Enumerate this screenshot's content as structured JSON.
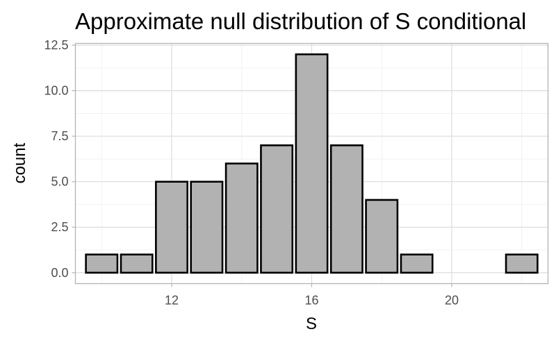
{
  "chart_data": {
    "type": "bar",
    "title": "Approximate null distribution of S conditional",
    "xlabel": "S",
    "ylabel": "count",
    "x": [
      10,
      11,
      12,
      13,
      14,
      15,
      16,
      17,
      18,
      19,
      20,
      21,
      22
    ],
    "values": [
      1,
      1,
      5,
      5,
      6,
      7,
      12,
      7,
      4,
      1,
      0,
      0,
      1
    ],
    "xlim": [
      9.25,
      22.75
    ],
    "ylim": [
      -0.6,
      12.6
    ],
    "x_ticks": [
      12,
      16,
      20
    ],
    "x_tick_labels": [
      "12",
      "16",
      "20"
    ],
    "y_ticks": [
      0,
      2.5,
      5,
      7.5,
      10,
      12.5
    ],
    "y_tick_labels": [
      "0.0",
      "2.5",
      "5.0",
      "7.5",
      "10.0",
      "12.5"
    ],
    "bar_fill": "#b2b2b2",
    "bar_outline": "#000000",
    "grid": true,
    "legend": "none"
  }
}
